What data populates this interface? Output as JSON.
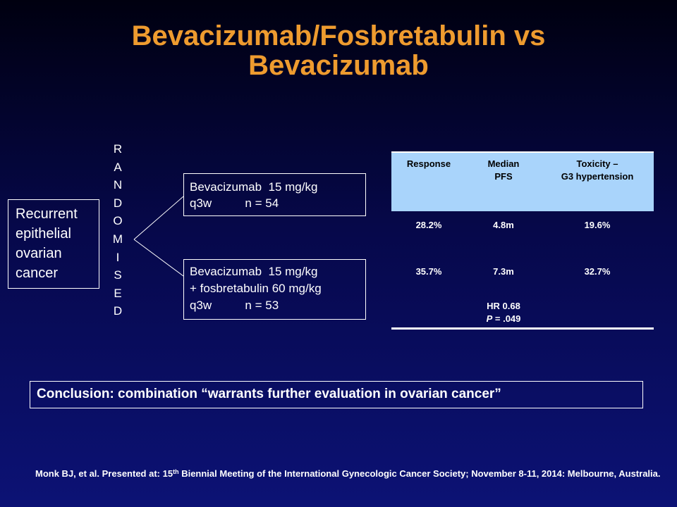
{
  "slide": {
    "title_line1": "Bevacizumab/Fosbretabulin vs",
    "title_line2": "Bevacizumab",
    "title_color": "#ee9b2f",
    "background_color": "#06084a"
  },
  "diagram": {
    "population_lines": [
      "Recurrent",
      "epithelial",
      "ovarian",
      "cancer"
    ],
    "randomised_letters": [
      "R",
      "A",
      "N",
      "D",
      "O",
      "M",
      "I",
      "S",
      "E",
      "D"
    ],
    "arm1_lines": [
      "Bevacizumab  15 mg/kg",
      "q3w          n = 54"
    ],
    "arm2_lines": [
      "Bevacizumab  15 mg/kg",
      "+ fosbretabulin 60 mg/kg",
      "q3w          n = 53"
    ]
  },
  "results_table": {
    "header_color": "#a9d4fb",
    "headers": [
      [
        "Response"
      ],
      [
        "Median",
        "PFS"
      ],
      [
        "Toxicity –",
        "G3 hypertension"
      ]
    ],
    "rows": [
      [
        "28.2%",
        "4.8m",
        "19.6%"
      ],
      [
        "35.7%",
        "7.3m",
        "32.7%"
      ]
    ],
    "hr_line": "HR 0.68",
    "p_label": "P",
    "p_value": " = .049"
  },
  "conclusion": "Conclusion: combination “warrants further evaluation in ovarian cancer”",
  "citation": {
    "part1": "Monk BJ, et al. Presented at: 15",
    "superscript": "th",
    "part2": " Biennial Meeting of the International Gynecologic Cancer Society; November 8-11, 2014: Melbourne, Australia."
  }
}
